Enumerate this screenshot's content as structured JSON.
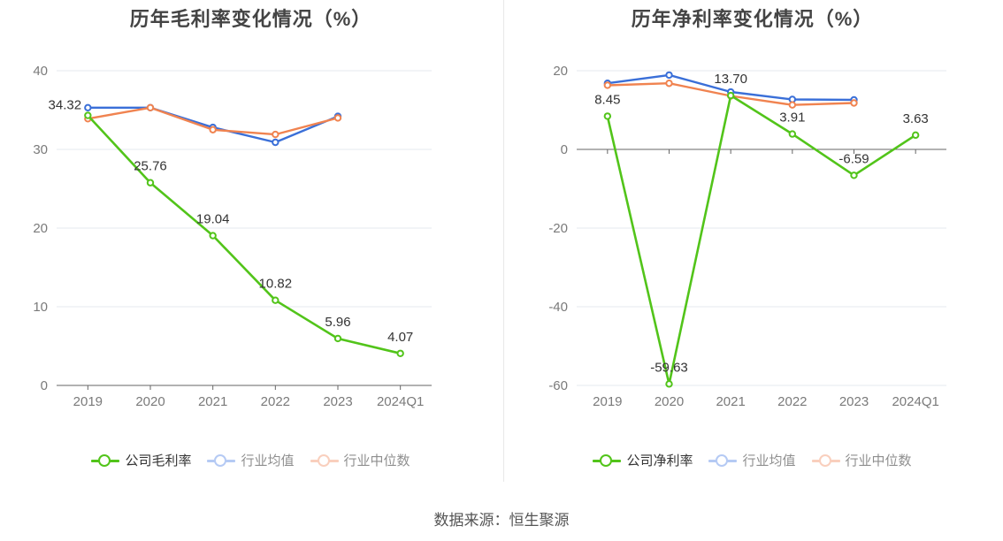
{
  "source": "数据来源：恒生聚源",
  "chart_data": [
    {
      "type": "line",
      "title": "历年毛利率变化情况（%）",
      "categories": [
        "2019",
        "2020",
        "2021",
        "2022",
        "2023",
        "2024Q1"
      ],
      "ylim": [
        0,
        40
      ],
      "yticks": [
        0,
        10,
        20,
        30,
        40
      ],
      "grid": true,
      "legend_position": "bottom",
      "series": [
        {
          "name": "公司毛利率",
          "color": "#52c41a",
          "values": [
            34.32,
            25.76,
            19.04,
            10.82,
            5.96,
            4.07
          ],
          "labels": [
            "34.32",
            "25.76",
            "19.04",
            "10.82",
            "5.96",
            "4.07"
          ]
        },
        {
          "name": "行业均值",
          "color": "#3a6fd8",
          "values": [
            35.3,
            35.3,
            32.8,
            30.9,
            34.2,
            null
          ]
        },
        {
          "name": "行业中位数",
          "color": "#f08350",
          "values": [
            33.9,
            35.3,
            32.5,
            31.9,
            34.0,
            null
          ]
        }
      ],
      "legend": {
        "items": [
          {
            "name": "公司毛利率",
            "color": "#52c41a",
            "active": true
          },
          {
            "name": "行业均值",
            "color": "#7aa0ec",
            "active": false
          },
          {
            "name": "行业中位数",
            "color": "#f5a988",
            "active": false
          }
        ]
      }
    },
    {
      "type": "line",
      "title": "历年净利率变化情况（%）",
      "categories": [
        "2019",
        "2020",
        "2021",
        "2022",
        "2023",
        "2024Q1"
      ],
      "ylim": [
        -60,
        20
      ],
      "yticks": [
        -60,
        -40,
        -20,
        0,
        20
      ],
      "grid": true,
      "legend_position": "bottom",
      "series": [
        {
          "name": "公司净利率",
          "color": "#52c41a",
          "values": [
            8.45,
            -59.63,
            13.7,
            3.91,
            -6.59,
            3.63
          ],
          "labels": [
            "8.45",
            "-59.63",
            "13.70",
            "3.91",
            "-6.59",
            "3.63"
          ]
        },
        {
          "name": "行业均值",
          "color": "#3a6fd8",
          "values": [
            16.8,
            18.9,
            14.6,
            12.7,
            12.6,
            null
          ]
        },
        {
          "name": "行业中位数",
          "color": "#f08350",
          "values": [
            16.3,
            16.8,
            13.6,
            11.3,
            11.8,
            null
          ]
        }
      ],
      "legend": {
        "items": [
          {
            "name": "公司净利率",
            "color": "#52c41a",
            "active": true
          },
          {
            "name": "行业均值",
            "color": "#7aa0ec",
            "active": false
          },
          {
            "name": "行业中位数",
            "color": "#f5a988",
            "active": false
          }
        ]
      }
    }
  ]
}
